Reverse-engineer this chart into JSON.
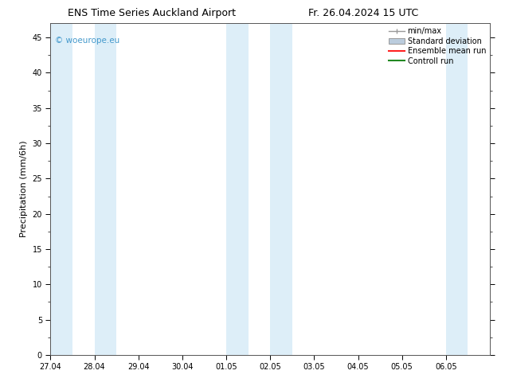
{
  "title_left": "ENS Time Series Auckland Airport",
  "title_right": "Fr. 26.04.2024 15 UTC",
  "ylabel": "Precipitation (mm/6h)",
  "xlim_start": 0,
  "xlim_end": 10,
  "ylim": [
    0,
    47
  ],
  "yticks": [
    0,
    5,
    10,
    15,
    20,
    25,
    30,
    35,
    40,
    45
  ],
  "xtick_labels": [
    "27.04",
    "28.04",
    "29.04",
    "30.04",
    "01.05",
    "02.05",
    "03.05",
    "04.05",
    "05.05",
    "06.05"
  ],
  "shaded_bands": [
    {
      "x_start": 0.0,
      "x_end": 0.5
    },
    {
      "x_start": 1.0,
      "x_end": 1.5
    },
    {
      "x_start": 4.0,
      "x_end": 4.5
    },
    {
      "x_start": 5.0,
      "x_end": 5.5
    },
    {
      "x_start": 9.0,
      "x_end": 9.5
    }
  ],
  "shade_color": "#ddeef8",
  "background_color": "#ffffff",
  "watermark_text": "© woeurope.eu",
  "watermark_color": "#4499cc",
  "title_fontsize": 9,
  "tick_fontsize": 7,
  "ylabel_fontsize": 8,
  "legend_fontsize": 7,
  "minmax_color": "#999999",
  "std_color": "#bbccdd",
  "ensemble_color": "#ff2222",
  "control_color": "#228822"
}
